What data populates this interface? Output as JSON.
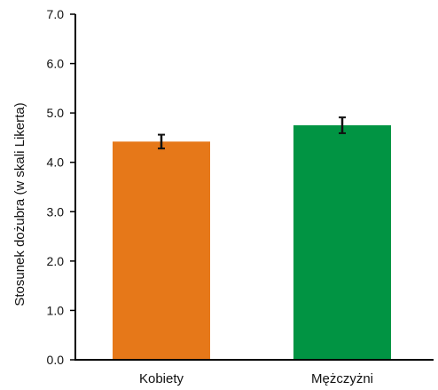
{
  "chart_data": {
    "type": "bar",
    "categories": [
      "Kobiety",
      "Mężczyżni"
    ],
    "values": [
      4.42,
      4.75
    ],
    "error": [
      0.14,
      0.16
    ],
    "colors": [
      "#e67819",
      "#019443"
    ],
    "title": "",
    "xlabel": "",
    "ylabel": "Stosunek dożubra (w skali  Likerta)",
    "ylim": [
      0,
      7
    ],
    "yticks": [
      "0.0",
      "1.0",
      "2.0",
      "3.0",
      "4.0",
      "5.0",
      "6.0",
      "7.0"
    ],
    "grid": false,
    "legend": "none"
  }
}
